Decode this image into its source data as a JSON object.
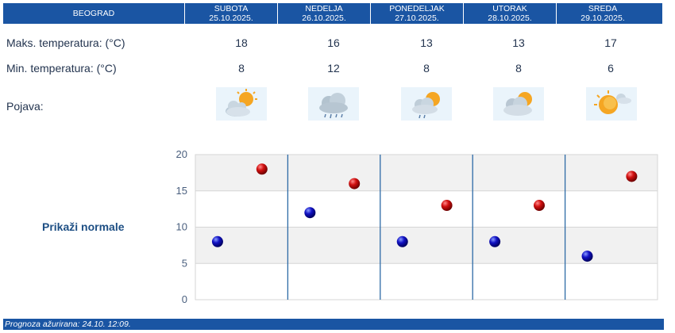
{
  "header": {
    "city": "BEOGRAD",
    "days": [
      {
        "name": "SUBOTA",
        "date": "25.10.2025."
      },
      {
        "name": "NEDELJA",
        "date": "26.10.2025."
      },
      {
        "name": "PONEDELJAK",
        "date": "27.10.2025."
      },
      {
        "name": "UTORAK",
        "date": "28.10.2025."
      },
      {
        "name": "SREDA",
        "date": "29.10.2025."
      }
    ]
  },
  "rows": {
    "max_label": "Maks. temperatura: (°C)",
    "min_label": "Min. temperatura: (°C)",
    "phenomenon_label": "Pojava:",
    "max_values": [
      "18",
      "16",
      "13",
      "13",
      "17"
    ],
    "min_values": [
      "8",
      "12",
      "8",
      "8",
      "6"
    ],
    "icons": [
      "partly-cloudy-sun-icon",
      "rain-cloud-icon",
      "cloud-sun-light-rain-icon",
      "cloud-sun-icon",
      "sun-cloud-icon"
    ]
  },
  "normals_link": "Prikaži normale",
  "footer": "Prognoza ažurirana:  24.10. 12:09.",
  "colors": {
    "header_bg": "#1a55a3",
    "max_marker": "#c00000",
    "min_marker": "#0a0aa8",
    "divider": "#2d6aa6"
  },
  "chart_data": {
    "type": "scatter",
    "ylim": [
      0,
      20
    ],
    "yticks": [
      0,
      5,
      10,
      15,
      20
    ],
    "series": [
      {
        "values": [
          18,
          16,
          13,
          13,
          17
        ],
        "color": "#c00000"
      },
      {
        "values": [
          8,
          12,
          8,
          8,
          6
        ],
        "color": "#0a0aa8"
      }
    ]
  }
}
